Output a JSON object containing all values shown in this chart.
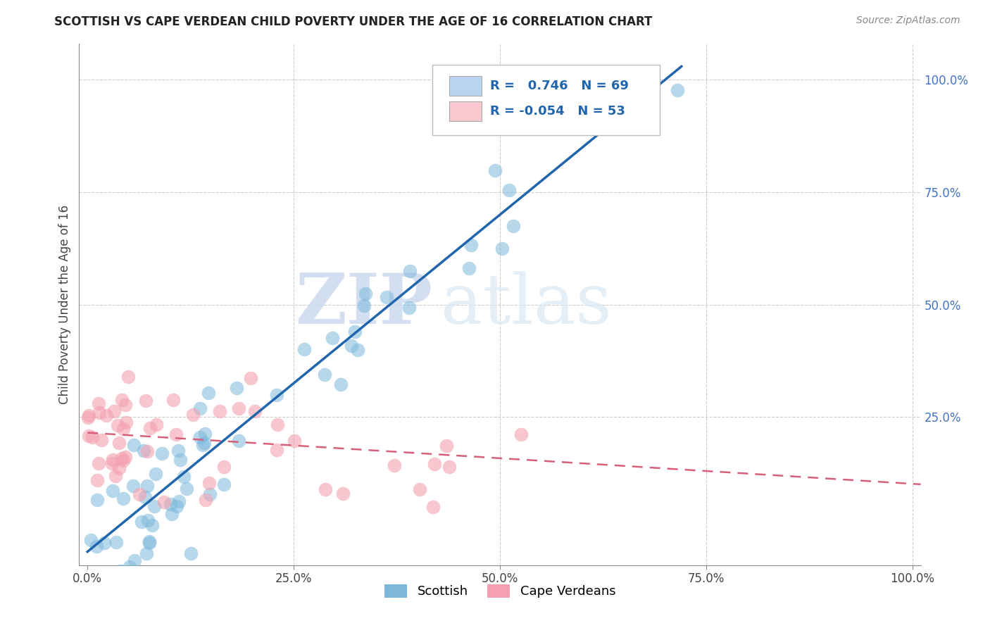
{
  "title": "SCOTTISH VS CAPE VERDEAN CHILD POVERTY UNDER THE AGE OF 16 CORRELATION CHART",
  "source": "Source: ZipAtlas.com",
  "ylabel": "Child Poverty Under the Age of 16",
  "xlim": [
    -0.01,
    1.01
  ],
  "ylim": [
    -0.08,
    1.08
  ],
  "xtick_labels": [
    "0.0%",
    "25.0%",
    "50.0%",
    "75.0%",
    "100.0%"
  ],
  "xtick_vals": [
    0.0,
    0.25,
    0.5,
    0.75,
    1.0
  ],
  "ytick_labels": [
    "25.0%",
    "50.0%",
    "75.0%",
    "100.0%"
  ],
  "ytick_vals": [
    0.25,
    0.5,
    0.75,
    1.0
  ],
  "scottish_R": 0.746,
  "scottish_N": 69,
  "capeverdean_R": -0.054,
  "capeverdean_N": 53,
  "scottish_color": "#7db8db",
  "capeverdean_color": "#f4a0b0",
  "scottish_line_color": "#2166ac",
  "capeverdean_line_color": "#d6607a",
  "watermark_zip": "ZIP",
  "watermark_atlas": "atlas",
  "background_color": "#ffffff",
  "grid_color": "#cccccc",
  "legend_box_color_scottish": "#b8d4ee",
  "legend_box_color_cape": "#f9c8d0",
  "scottish_line_x0": 0.0,
  "scottish_line_y0": -0.05,
  "scottish_line_x1": 0.72,
  "scottish_line_y1": 1.03,
  "cape_line_x0": 0.0,
  "cape_line_y0": 0.215,
  "cape_line_x1": 1.01,
  "cape_line_y1": 0.1
}
